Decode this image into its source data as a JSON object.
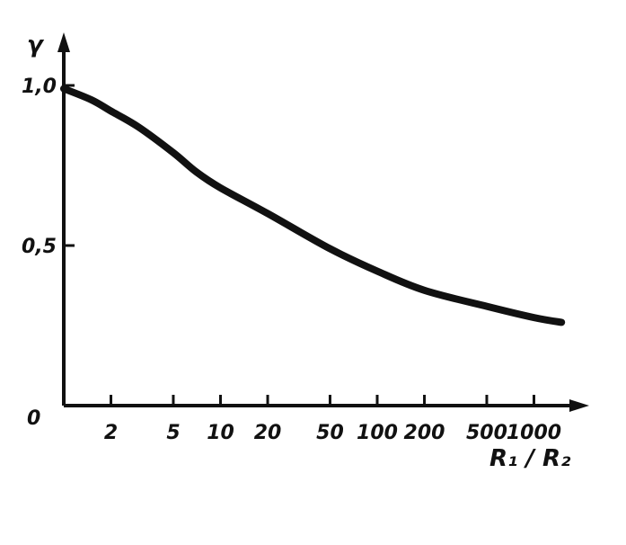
{
  "chart_data": {
    "type": "line",
    "xscale": "log",
    "x_origin_value": 1,
    "xlim": [
      1,
      1500
    ],
    "ylim": [
      0,
      1.0
    ],
    "xlabel": "R₁ / R₂",
    "ylabel": "γ",
    "x_ticks": [
      {
        "value": 2,
        "label": "2"
      },
      {
        "value": 5,
        "label": "5"
      },
      {
        "value": 10,
        "label": "10"
      },
      {
        "value": 20,
        "label": "20"
      },
      {
        "value": 50,
        "label": "50"
      },
      {
        "value": 100,
        "label": "100"
      },
      {
        "value": 200,
        "label": "200"
      },
      {
        "value": 500,
        "label": "500"
      },
      {
        "value": 1000,
        "label": "1000"
      }
    ],
    "y_ticks": [
      {
        "value": 1.0,
        "label": "1,0"
      },
      {
        "value": 0.5,
        "label": "0,5"
      }
    ],
    "origin_label": "0",
    "grid": false,
    "series": [
      {
        "x": [
          1,
          1.5,
          2,
          3,
          5,
          7,
          10,
          20,
          50,
          100,
          200,
          500,
          1000,
          1500
        ],
        "y": [
          0.99,
          0.955,
          0.92,
          0.87,
          0.79,
          0.73,
          0.68,
          0.6,
          0.49,
          0.42,
          0.36,
          0.31,
          0.275,
          0.26
        ]
      }
    ]
  }
}
